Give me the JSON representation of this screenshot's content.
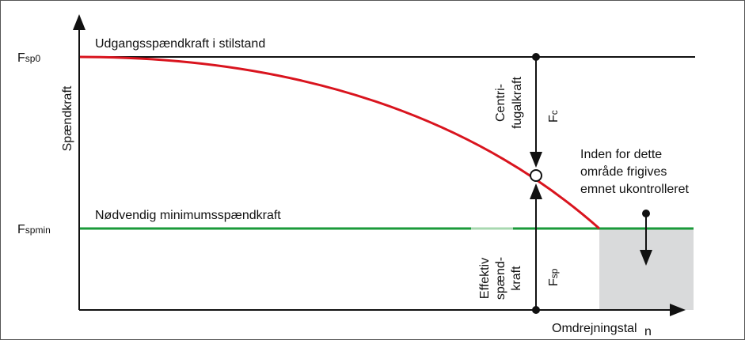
{
  "y_axis_label": "Spændkraft",
  "x_axis_label": "Omdrejningstal",
  "x_axis_symbol": "n",
  "top_line_label": "Udgangsspændkraft i stilstand",
  "bottom_line_label": "Nødvendig minimumsspændkraft",
  "fsp0": {
    "main": "F",
    "sub": "sp0"
  },
  "fspmin": {
    "main": "F",
    "sub": "spmin"
  },
  "fc": {
    "main": "F",
    "sub": "c"
  },
  "fsp": {
    "main": "F",
    "sub": "sp"
  },
  "centrifugal_label": [
    "Centri-",
    "fugalkraft"
  ],
  "effective_label": [
    "Effektiv",
    "spænd-",
    "kraft"
  ],
  "region_note": [
    "Inden for dette",
    "område frigives",
    "emnet ukontrolleret"
  ]
}
